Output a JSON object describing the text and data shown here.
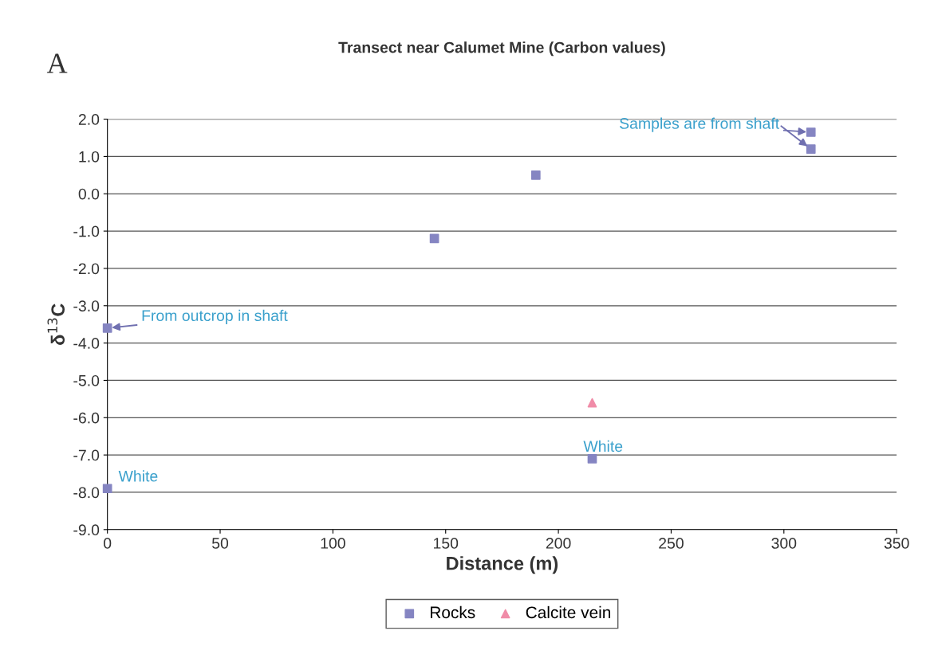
{
  "chart_data": {
    "type": "scatter",
    "title": "Transect near Calumet Mine (Carbon values)",
    "xlabel": "Distance (m)",
    "ylabel": "δ$^{13}$C",
    "series": [
      {
        "name": "Rocks",
        "color": "#8585c2",
        "marker": "square",
        "x": [
          0,
          0,
          145,
          190,
          215,
          312,
          312
        ],
        "values": [
          -3.6,
          -7.9,
          -1.2,
          0.5,
          -7.1,
          1.65,
          1.2
        ]
      },
      {
        "name": "Calcite vein",
        "color": "#f08ca8",
        "marker": "triangle",
        "x": [
          215
        ],
        "values": [
          -5.6
        ]
      }
    ],
    "annotations": [
      "A",
      {
        "text": "Samples are from shaft",
        "x": 312,
        "y": 1.65
      },
      {
        "text": "From outcrop in shaft",
        "x": 0,
        "y": -3.6
      },
      {
        "text": "White",
        "x": 215,
        "y": -7.1
      },
      {
        "text": "White",
        "x": 0,
        "y": -7.9
      }
    ],
    "xlim": [
      0,
      350
    ],
    "xticks": [
      0,
      50,
      100,
      150,
      200,
      250,
      300,
      350
    ],
    "ylim": [
      -9,
      2
    ],
    "yticks": [
      {
        "value": -9,
        "label": "-9.0"
      },
      {
        "value": -8,
        "label": "-8.0"
      },
      {
        "value": -7,
        "label": "-7.0"
      },
      {
        "value": -6,
        "label": "-6.0"
      },
      {
        "value": -5,
        "label": "-5.0"
      },
      {
        "value": -4,
        "label": "-4.0"
      },
      {
        "value": -3,
        "label": "-3.0"
      },
      {
        "value": -2,
        "label": "-2.0"
      },
      {
        "value": -1,
        "label": "-1.0"
      },
      {
        "value": 0,
        "label": "0.0"
      },
      {
        "value": 1,
        "label": "1.0"
      },
      {
        "value": 2,
        "label": "2.0"
      }
    ],
    "grid": "y",
    "legend": "bottom"
  }
}
